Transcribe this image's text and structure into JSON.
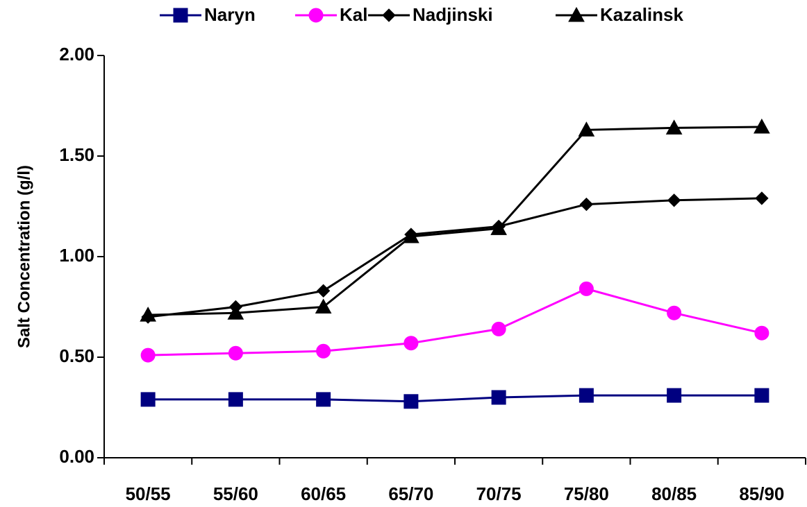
{
  "chart_data": {
    "type": "line",
    "y_label": "Salt Concentration (g/l)",
    "categories": [
      "50/55",
      "55/60",
      "60/65",
      "65/70",
      "70/75",
      "75/80",
      "80/85",
      "85/90"
    ],
    "series": [
      {
        "name": "Naryn",
        "color": "#000080",
        "marker": "square",
        "values": [
          0.29,
          0.29,
          0.29,
          0.28,
          0.3,
          0.31,
          0.31,
          0.31
        ]
      },
      {
        "name": "Kal",
        "color": "#ff00ff",
        "marker": "circle",
        "values": [
          0.51,
          0.52,
          0.53,
          0.57,
          0.64,
          0.84,
          0.72,
          0.62
        ]
      },
      {
        "name": "Nadjinski",
        "color": "#000000",
        "marker": "diamond",
        "values": [
          0.7,
          0.75,
          0.83,
          1.11,
          1.15,
          1.26,
          1.28,
          1.29
        ]
      },
      {
        "name": "Kazalinsk",
        "color": "#000000",
        "marker": "triangle",
        "values": [
          0.71,
          0.72,
          0.75,
          1.1,
          1.14,
          1.63,
          1.64,
          1.645
        ]
      }
    ],
    "ylim": [
      0,
      2
    ],
    "yticks": [
      {
        "value": 0,
        "label": "0.00"
      },
      {
        "value": 0.5,
        "label": "0.50"
      },
      {
        "value": 1,
        "label": "1.00"
      },
      {
        "value": 1.5,
        "label": "1.50"
      },
      {
        "value": 2,
        "label": "2.00"
      }
    ],
    "grid": false,
    "legend": "top"
  }
}
